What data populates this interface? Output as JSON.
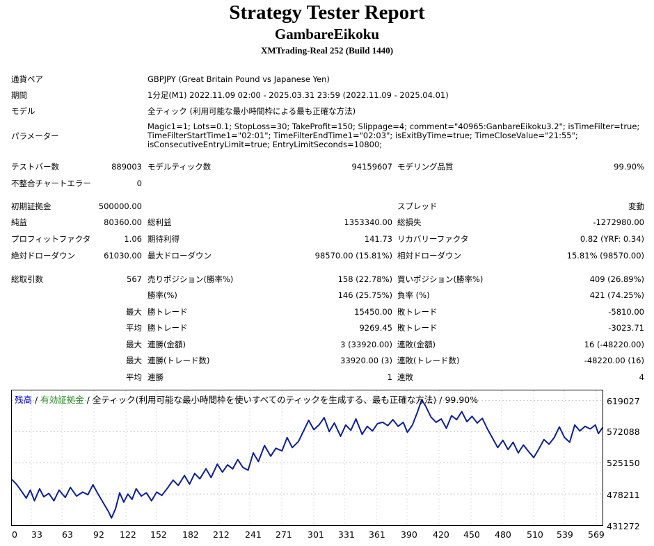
{
  "header": {
    "title": "Strategy Tester Report",
    "ea_name": "GambareEikoku",
    "server": "XMTrading-Real 252 (Build 1440)"
  },
  "info": {
    "pair_label": "通貨ペア",
    "pair_value": "GBPJPY (Great Britain Pound vs Japanese Yen)",
    "period_label": "期間",
    "period_value": "1分足(M1) 2022.11.09 02:00 - 2025.03.31 23:59 (2022.11.09 - 2025.04.01)",
    "model_label": "モデル",
    "model_value": "全ティック (利用可能な最小時間枠による最も正確な方法)",
    "params_label": "パラメーター",
    "params_value": "Magic1=1; Lots=0.1; StopLoss=30; TakeProfit=150; Slippage=4; comment=\"40965:GanbareEikoku3.2\"; isTimeFilter=true; TimeFilterStartTime1=\"02:01\"; TimeFilterEndTime1=\"02:03\"; isExitByTime=true; TimeCloseValue=\"21:55\"; isConsecutiveEntryLimit=true; EntryLimitSeconds=10800;"
  },
  "stats": {
    "bars_label": "テストバー数",
    "bars": "889003",
    "ticks_label": "モデルティック数",
    "ticks": "94159607",
    "quality_label": "モデリング品質",
    "quality": "99.90%",
    "mismatch_label": "不整合チャートエラー",
    "mismatch": "0",
    "deposit_label": "初期証拠金",
    "deposit": "500000.00",
    "spread_label": "スプレッド",
    "spread": "変動",
    "net_label": "純益",
    "net": "80360.00",
    "gross_profit_label": "総利益",
    "gross_profit": "1353340.00",
    "gross_loss_label": "総損失",
    "gross_loss": "-1272980.00",
    "pf_label": "プロフィットファクタ",
    "pf": "1.06",
    "expected_label": "期待利得",
    "expected": "141.73",
    "recovery_label": "リカバリーファクタ",
    "recovery": "0.82 (YRF: 0.34)",
    "abs_dd_label": "絶対ドローダウン",
    "abs_dd": "61030.00",
    "max_dd_label": "最大ドローダウン",
    "max_dd": "98570.00 (15.81%)",
    "rel_dd_label": "相対ドローダウン",
    "rel_dd": "15.81% (98570.00)",
    "trades_label": "総取引数",
    "trades": "567",
    "short_label": "売りポジション(勝率%)",
    "short": "158 (22.78%)",
    "long_label": "買いポジション(勝率%)",
    "long": "409 (26.89%)",
    "win_rate_label": "勝率(%)",
    "win_rate": "146 (25.75%)",
    "loss_rate_label": "負率 (%)",
    "loss_rate": "421 (74.25%)",
    "max_label": "最大",
    "avg_label": "平均",
    "win_trade_label": "勝トレード",
    "loss_trade_label": "敗トレード",
    "max_win": "15450.00",
    "max_loss": "-5810.00",
    "avg_win": "9269.45",
    "avg_loss": "-3023.71",
    "cons_win_amt_label": "連勝(金額)",
    "cons_win_amt": "3 (33920.00)",
    "cons_loss_amt_label": "連敗(金額)",
    "cons_loss_amt": "16 (-48220.00)",
    "cons_win_cnt_label": "連勝(トレード数)",
    "cons_win_cnt": "33920.00 (3)",
    "cons_loss_cnt_label": "連敗(トレード数)",
    "cons_loss_cnt": "-48220.00 (16)",
    "avg_cons_win_label": "連勝",
    "avg_cons_win": "1",
    "avg_cons_loss_label": "連敗",
    "avg_cons_loss": "4"
  },
  "chart_legend": {
    "balance": "残高",
    "sep1": " / ",
    "equity": "有効証拠金",
    "sep2": " / ",
    "model": "全ティック(利用可能な最小時間枠を使いすべてのティックを生成する、最も正確な方法)",
    "sep3": " / ",
    "quality": "99.90%",
    "balance_color": "#0000cc",
    "equity_color": "#2a8c2a",
    "line_color": "#0c1f8f"
  },
  "chart_data": {
    "type": "line",
    "x_ticks": [
      "0",
      "33",
      "63",
      "92",
      "122",
      "152",
      "182",
      "212",
      "241",
      "271",
      "301",
      "331",
      "361",
      "390",
      "420",
      "450",
      "480",
      "510",
      "539",
      "569"
    ],
    "y_ticks": [
      "619027",
      "572088",
      "525150",
      "478211",
      "431272"
    ],
    "ylim": [
      431272,
      634000
    ],
    "xlim": [
      0,
      575
    ],
    "grid": true,
    "series": [
      {
        "name": "残高",
        "points": [
          [
            0,
            500000
          ],
          [
            5,
            492000
          ],
          [
            10,
            481000
          ],
          [
            14,
            472000
          ],
          [
            18,
            484000
          ],
          [
            22,
            468000
          ],
          [
            27,
            486000
          ],
          [
            31,
            474000
          ],
          [
            36,
            479000
          ],
          [
            41,
            468000
          ],
          [
            46,
            484000
          ],
          [
            52,
            473000
          ],
          [
            57,
            488000
          ],
          [
            63,
            475000
          ],
          [
            69,
            481000
          ],
          [
            74,
            477000
          ],
          [
            79,
            492000
          ],
          [
            84,
            478000
          ],
          [
            89,
            465000
          ],
          [
            94,
            452000
          ],
          [
            97,
            442000
          ],
          [
            101,
            456000
          ],
          [
            105,
            480000
          ],
          [
            109,
            466000
          ],
          [
            113,
            478000
          ],
          [
            117,
            470000
          ],
          [
            121,
            486000
          ],
          [
            126,
            475000
          ],
          [
            131,
            480000
          ],
          [
            136,
            468000
          ],
          [
            141,
            481000
          ],
          [
            146,
            476000
          ],
          [
            152,
            488000
          ],
          [
            157,
            499000
          ],
          [
            162,
            491000
          ],
          [
            168,
            506000
          ],
          [
            173,
            493000
          ],
          [
            178,
            509000
          ],
          [
            183,
            501000
          ],
          [
            189,
            516000
          ],
          [
            194,
            503000
          ],
          [
            200,
            523000
          ],
          [
            205,
            511000
          ],
          [
            210,
            522000
          ],
          [
            215,
            516000
          ],
          [
            220,
            530000
          ],
          [
            225,
            518000
          ],
          [
            230,
            514000
          ],
          [
            235,
            540000
          ],
          [
            240,
            527000
          ],
          [
            246,
            551000
          ],
          [
            252,
            535000
          ],
          [
            257,
            547000
          ],
          [
            263,
            543000
          ],
          [
            268,
            563000
          ],
          [
            273,
            548000
          ],
          [
            279,
            557000
          ],
          [
            284,
            573000
          ],
          [
            289,
            589000
          ],
          [
            294,
            575000
          ],
          [
            299,
            582000
          ],
          [
            304,
            593000
          ],
          [
            309,
            572000
          ],
          [
            314,
            585000
          ],
          [
            320,
            565000
          ],
          [
            325,
            582000
          ],
          [
            330,
            574000
          ],
          [
            335,
            591000
          ],
          [
            341,
            568000
          ],
          [
            346,
            580000
          ],
          [
            351,
            573000
          ],
          [
            356,
            584000
          ],
          [
            361,
            586000
          ],
          [
            366,
            581000
          ],
          [
            371,
            590000
          ],
          [
            376,
            580000
          ],
          [
            381,
            586000
          ],
          [
            385,
            571000
          ],
          [
            390,
            582000
          ],
          [
            395,
            602000
          ],
          [
            399,
            620000
          ],
          [
            403,
            610000
          ],
          [
            408,
            594000
          ],
          [
            413,
            586000
          ],
          [
            418,
            591000
          ],
          [
            423,
            577000
          ],
          [
            428,
            596000
          ],
          [
            433,
            590000
          ],
          [
            438,
            602000
          ],
          [
            443,
            587000
          ],
          [
            448,
            595000
          ],
          [
            453,
            585000
          ],
          [
            458,
            592000
          ],
          [
            463,
            576000
          ],
          [
            468,
            562000
          ],
          [
            473,
            548000
          ],
          [
            478,
            559000
          ],
          [
            483,
            545000
          ],
          [
            488,
            556000
          ],
          [
            493,
            540000
          ],
          [
            498,
            552000
          ],
          [
            503,
            542000
          ],
          [
            508,
            533000
          ],
          [
            513,
            546000
          ],
          [
            518,
            560000
          ],
          [
            523,
            553000
          ],
          [
            528,
            563000
          ],
          [
            533,
            579000
          ],
          [
            538,
            563000
          ],
          [
            543,
            556000
          ],
          [
            548,
            582000
          ],
          [
            553,
            573000
          ],
          [
            558,
            580000
          ],
          [
            563,
            576000
          ],
          [
            568,
            582000
          ],
          [
            571,
            569000
          ],
          [
            575,
            578000
          ]
        ]
      }
    ]
  }
}
